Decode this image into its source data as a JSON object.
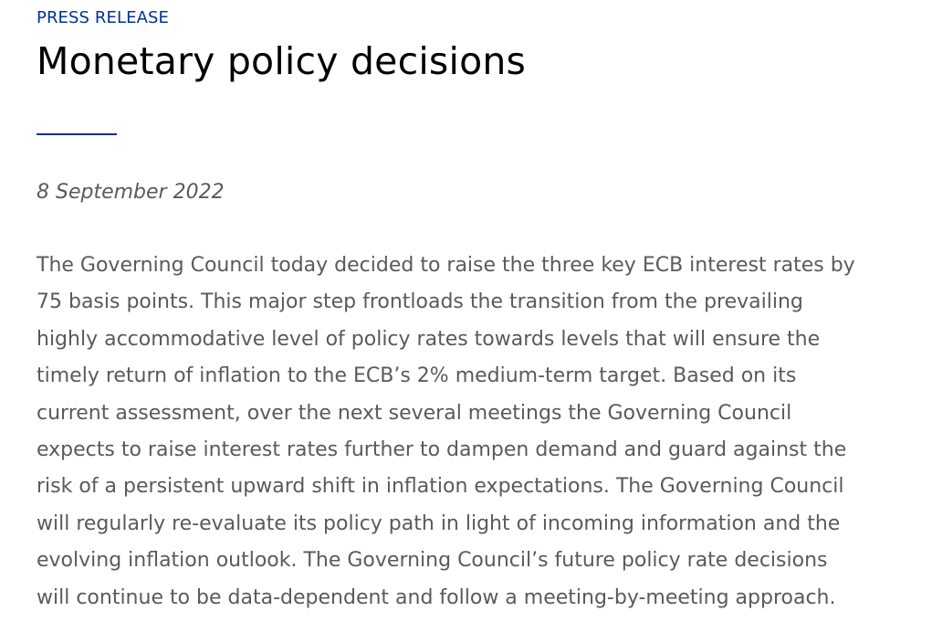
{
  "header": {
    "kicker": "PRESS RELEASE",
    "title": "Monetary policy decisions"
  },
  "meta": {
    "date": "8 September 2022"
  },
  "body": {
    "lines": [
      "The Governing Council today decided to raise the three key ECB interest rates by",
      "75 basis points. This major step frontloads the transition from the prevailing",
      "highly accommodative level of policy rates towards levels that will ensure the",
      "timely return of inflation to the ECB’s 2% medium-term target. Based on its",
      "current assessment, over the next several meetings the Governing Council",
      "expects to raise interest rates further to dampen demand and guard against the",
      "risk of a persistent upward shift in inflation expectations. The Governing Council",
      "will regularly re-evaluate its policy path in light of incoming information and the",
      "evolving inflation outlook. The Governing Council’s future policy rate decisions",
      "will continue to be data-dependent and follow a meeting-by-meeting approach."
    ]
  },
  "colors": {
    "accent": "#003299",
    "title": "#000000",
    "text": "#5a5a5a",
    "background": "#ffffff"
  }
}
